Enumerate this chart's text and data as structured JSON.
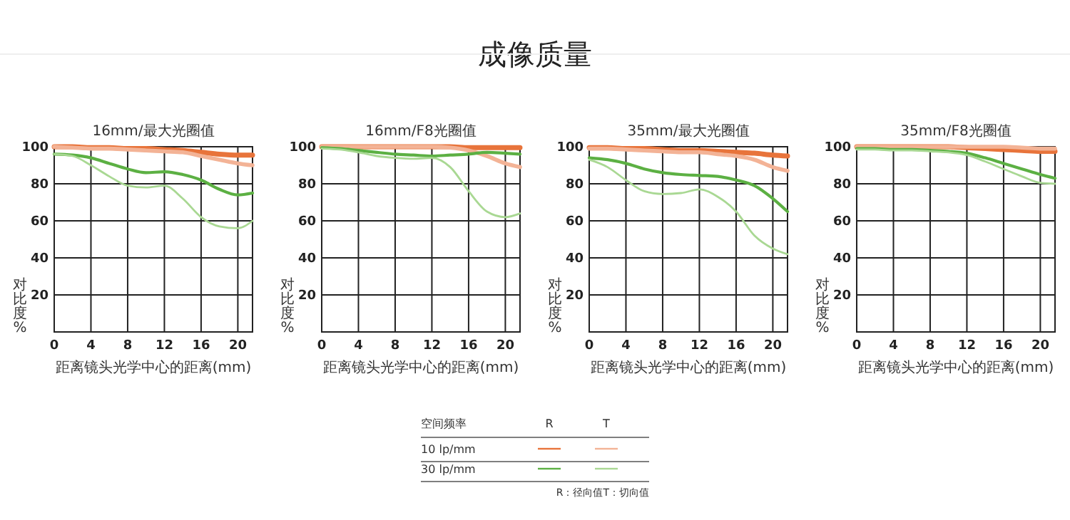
{
  "chart_data": [
    {
      "type": "line",
      "title": "16mm/最大光圈值",
      "xlabel": "距离镜头光学中心的距离(mm)",
      "ylabel": "对比度%",
      "xlim": [
        0,
        21.6
      ],
      "ylim": [
        0,
        100
      ],
      "xticks": [
        0,
        4,
        8,
        12,
        16,
        20
      ],
      "yticks": [
        20,
        40,
        60,
        80,
        100
      ],
      "grid": true,
      "x": [
        0,
        2,
        4,
        6,
        8,
        10,
        12,
        14,
        16,
        18,
        20,
        21.6
      ],
      "series": [
        {
          "color": "#e8743b",
          "values": [
            100,
            100,
            99.5,
            99.5,
            99,
            99,
            98.5,
            98,
            97,
            96,
            95.5,
            95.5
          ]
        },
        {
          "color": "#f3b396",
          "values": [
            100,
            99.5,
            99,
            99,
            98.5,
            98,
            97.5,
            97,
            95,
            93,
            91,
            90
          ]
        },
        {
          "color": "#5cb043",
          "values": [
            96,
            95.5,
            94,
            91,
            88,
            86,
            86.5,
            85,
            82,
            77,
            74,
            75
          ]
        },
        {
          "color": "#a9d893",
          "values": [
            96,
            95,
            90,
            84,
            79,
            78,
            79,
            72,
            62,
            57,
            56,
            60
          ]
        }
      ]
    },
    {
      "type": "line",
      "title": "16mm/F8光圈值",
      "xlabel": "距离镜头光学中心的距离(mm)",
      "ylabel": "对比度%",
      "xlim": [
        0,
        21.6
      ],
      "ylim": [
        0,
        100
      ],
      "xticks": [
        0,
        4,
        8,
        12,
        16,
        20
      ],
      "yticks": [
        20,
        40,
        60,
        80,
        100
      ],
      "grid": true,
      "x": [
        0,
        2,
        4,
        6,
        8,
        10,
        12,
        14,
        16,
        18,
        20,
        21.6
      ],
      "series": [
        {
          "color": "#e8743b",
          "values": [
            100,
            100,
            100,
            100,
            100,
            100,
            100,
            100,
            99.5,
            99.5,
            99.5,
            99.5
          ]
        },
        {
          "color": "#f3b396",
          "values": [
            100,
            100,
            100,
            100,
            100,
            100,
            100,
            99.5,
            98,
            95,
            91,
            89
          ]
        },
        {
          "color": "#5cb043",
          "values": [
            99.5,
            99,
            98,
            97,
            96,
            95.5,
            95,
            95.5,
            96,
            97,
            96.5,
            96
          ]
        },
        {
          "color": "#a9d893",
          "values": [
            99,
            98.5,
            97,
            95,
            94,
            93.5,
            94,
            89,
            76,
            65,
            62,
            64
          ]
        }
      ]
    },
    {
      "type": "line",
      "title": "35mm/最大光圈值",
      "xlabel": "距离镜头光学中心的距离(mm)",
      "ylabel": "对比度%",
      "xlim": [
        0,
        21.6
      ],
      "ylim": [
        0,
        100
      ],
      "xticks": [
        0,
        4,
        8,
        12,
        16,
        20
      ],
      "yticks": [
        20,
        40,
        60,
        80,
        100
      ],
      "grid": true,
      "x": [
        0,
        2,
        4,
        6,
        8,
        10,
        12,
        14,
        16,
        18,
        20,
        21.6
      ],
      "series": [
        {
          "color": "#e8743b",
          "values": [
            99.5,
            99.5,
            99,
            99,
            98.5,
            98,
            98,
            97.5,
            97,
            96.5,
            95.5,
            95
          ]
        },
        {
          "color": "#f3b396",
          "values": [
            99,
            99,
            98.5,
            98,
            97.5,
            97,
            97,
            96,
            95,
            93,
            89,
            87
          ]
        },
        {
          "color": "#5cb043",
          "values": [
            94,
            93,
            91,
            88,
            86,
            85,
            84.5,
            84,
            82,
            79,
            72,
            65
          ]
        },
        {
          "color": "#a9d893",
          "values": [
            93,
            89,
            82,
            76,
            74.5,
            75,
            77,
            73,
            65,
            52,
            45,
            42
          ]
        }
      ]
    },
    {
      "type": "line",
      "title": "35mm/F8光圈值",
      "xlabel": "距离镜头光学中心的距离(mm)",
      "ylabel": "对比度%",
      "xlim": [
        0,
        21.6
      ],
      "ylim": [
        0,
        100
      ],
      "xticks": [
        0,
        4,
        8,
        12,
        16,
        20
      ],
      "yticks": [
        20,
        40,
        60,
        80,
        100
      ],
      "grid": true,
      "x": [
        0,
        2,
        4,
        6,
        8,
        10,
        12,
        14,
        16,
        18,
        20,
        21.6
      ],
      "series": [
        {
          "color": "#e8743b",
          "values": [
            100,
            100,
            100,
            100,
            100,
            100,
            99.5,
            99,
            98.5,
            98,
            97.5,
            97.5
          ]
        },
        {
          "color": "#f3b396",
          "values": [
            100,
            100,
            100,
            100,
            100,
            100,
            100,
            100,
            100,
            99.5,
            99,
            99
          ]
        },
        {
          "color": "#5cb043",
          "values": [
            99,
            99,
            98.5,
            98.5,
            98,
            97.5,
            96.5,
            94,
            91,
            88,
            85,
            83
          ]
        },
        {
          "color": "#a9d893",
          "values": [
            98.5,
            98.5,
            98,
            98,
            97.5,
            97,
            95.5,
            92,
            88,
            84,
            80.5,
            80
          ]
        }
      ]
    },
    {
      "type": "other",
      "title": "成像质量",
      "legend_title": "空间频率",
      "colors": [
        "#e8743b",
        "#f3b396",
        "#5cb043",
        "#a9d893"
      ],
      "annotations": [
        "R",
        "T",
        "10 lp/mm",
        "30 lp/mm",
        "R：径向值T：切向值"
      ]
    }
  ]
}
